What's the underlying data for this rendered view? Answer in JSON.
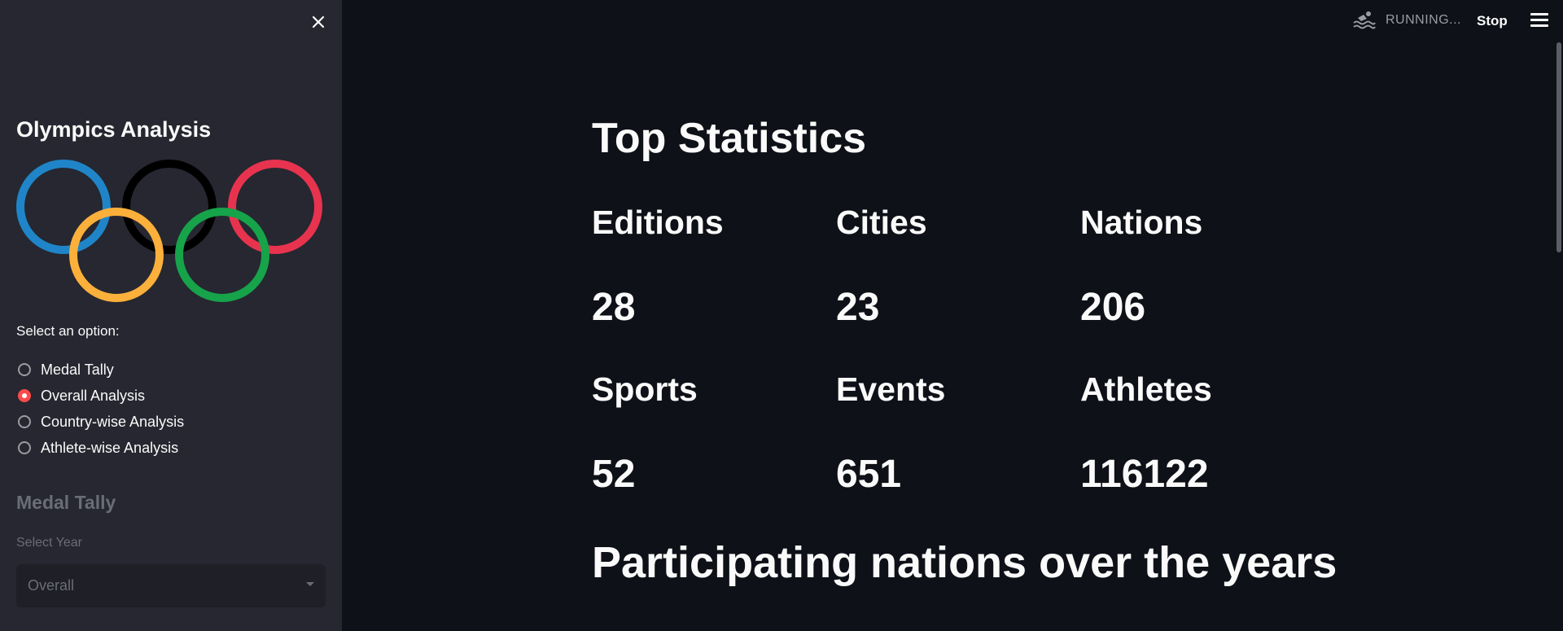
{
  "sidebar": {
    "title": "Olympics Analysis",
    "option_label": "Select an option:",
    "options": [
      {
        "label": "Medal Tally",
        "selected": false
      },
      {
        "label": "Overall Analysis",
        "selected": true
      },
      {
        "label": "Country-wise Analysis",
        "selected": false
      },
      {
        "label": "Athlete-wise Analysis",
        "selected": false
      }
    ],
    "medal_heading": "Medal Tally",
    "select_year_label": "Select Year",
    "select_year_value": "Overall"
  },
  "header": {
    "status_text": "RUNNING...",
    "stop_label": "Stop",
    "icons": [
      "swimmer-icon",
      "menu-icon",
      "close-icon"
    ]
  },
  "main": {
    "title": "Top Statistics",
    "stats": [
      {
        "label": "Editions",
        "value": "28"
      },
      {
        "label": "Cities",
        "value": "23"
      },
      {
        "label": "Nations",
        "value": "206"
      },
      {
        "label": "Sports",
        "value": "52"
      },
      {
        "label": "Events",
        "value": "651"
      },
      {
        "label": "Athletes",
        "value": "116122"
      }
    ],
    "section_heading": "Participating nations over the years"
  },
  "colors": {
    "background": "#0e1117",
    "sidebar": "#262730",
    "accent": "#ff4b4b",
    "ring_blue": "#1f85c8",
    "ring_yellow": "#fbb03b",
    "ring_black": "#000000",
    "ring_green": "#16a34a",
    "ring_red": "#e8334f"
  }
}
